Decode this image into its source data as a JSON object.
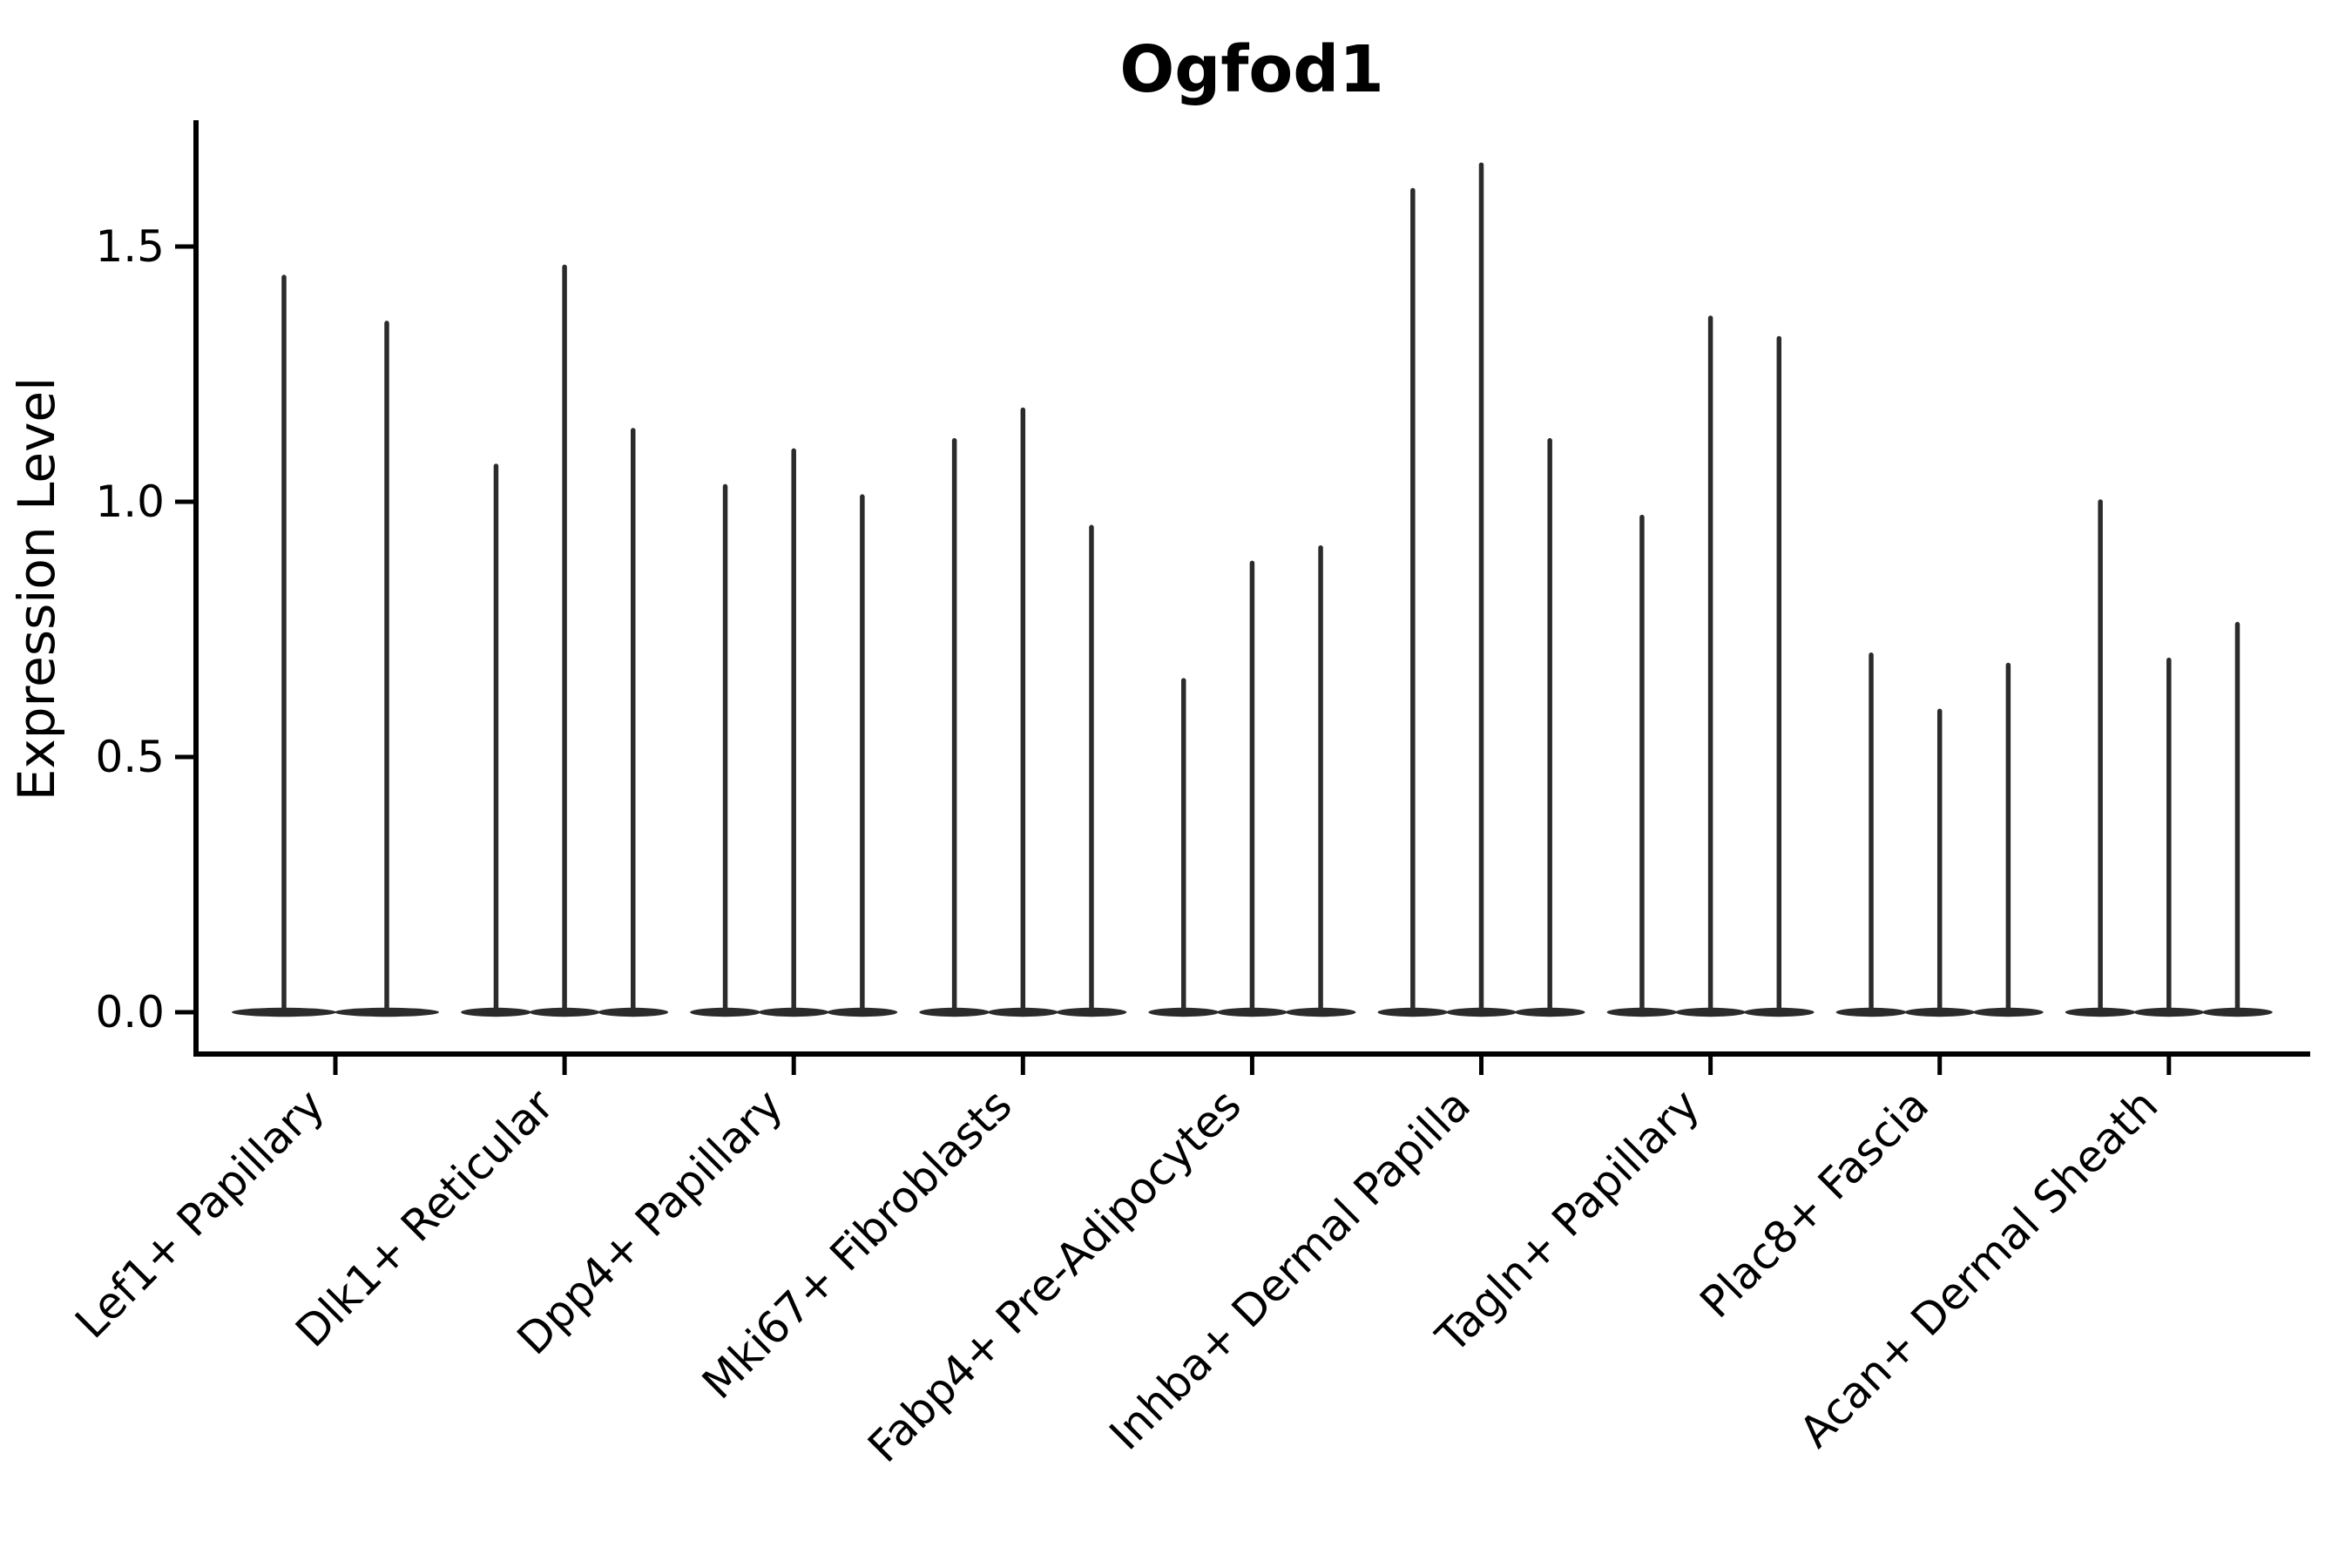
{
  "chart_data": {
    "type": "violin",
    "title": "Ogfod1",
    "ylabel": "Expression Level",
    "xlabel": "",
    "ylim": [
      -0.08,
      1.745
    ],
    "yticks": [
      0.0,
      0.5,
      1.0,
      1.5
    ],
    "ytick_labels": [
      "0.0",
      "0.5",
      "1.0",
      "1.5"
    ],
    "grid": false,
    "legend_position": "none",
    "ink_color": "#2b2b2b",
    "axis_color": "#000000",
    "background_color": "#ffffff",
    "categories": [
      "Lef1+ Papillary",
      "Dlk1+ Reticular",
      "Dpp4+ Papillary",
      "Mki67+ Fibroblasts",
      "Fabp4+ Pre-Adipocytes",
      "Inhba+ Dermal Papilla",
      "Tagln+ Papillary",
      "Plac8+ Fascia",
      "Acan+ Dermal Sheath"
    ],
    "groups": [
      {
        "category": "Lef1+ Papillary",
        "violin_maxima": [
          1.44,
          1.35
        ]
      },
      {
        "category": "Dlk1+ Reticular",
        "violin_maxima": [
          1.07,
          1.46,
          1.14
        ]
      },
      {
        "category": "Dpp4+ Papillary",
        "violin_maxima": [
          1.03,
          1.1,
          1.01
        ]
      },
      {
        "category": "Mki67+ Fibroblasts",
        "violin_maxima": [
          1.12,
          1.18,
          0.95
        ]
      },
      {
        "category": "Fabp4+ Pre-Adipocytes",
        "violin_maxima": [
          0.65,
          0.88,
          0.91
        ]
      },
      {
        "category": "Inhba+ Dermal Papilla",
        "violin_maxima": [
          1.61,
          1.66,
          1.12
        ]
      },
      {
        "category": "Tagln+ Papillary",
        "violin_maxima": [
          0.97,
          1.36,
          1.32
        ]
      },
      {
        "category": "Plac8+ Fascia",
        "violin_maxima": [
          0.7,
          0.59,
          0.68
        ]
      },
      {
        "category": "Acan+ Dermal Sheath",
        "violin_maxima": [
          1.0,
          0.69,
          0.76
        ]
      }
    ],
    "distribution_note": "Each violin has nearly all density in a flat disc at 0 with a thin tail rising to its maximum expression value."
  }
}
